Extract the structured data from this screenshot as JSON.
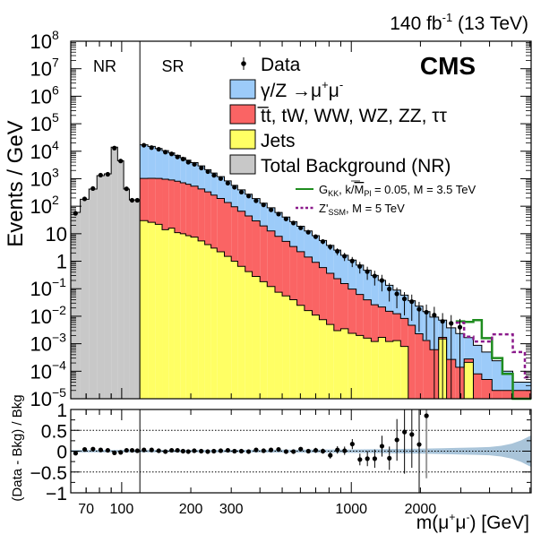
{
  "chart_data": {
    "type": "histogram-stacked-log",
    "lumi_label": "140 fb⁻¹ (13 TeV)",
    "lumi_parts": {
      "value": "140 fb",
      "sup": "-1",
      "tail": " (13 TeV)"
    },
    "experiment_label": "CMS",
    "region_labels": {
      "control": "NR",
      "signal": "SR"
    },
    "ylabel": "Events / GeV",
    "ratio_ylabel": "(Data - Bkg) / Bkg",
    "xlabel": "m(μ⁺μ⁻) [GeV]",
    "xlabel_parts": {
      "pre": "m(μ",
      "sup1": "+",
      "mid": "μ",
      "sup2": "-",
      "post": ") [GeV]"
    },
    "xlim": [
      60,
      6070
    ],
    "ylim": [
      1e-05,
      100000000.0
    ],
    "ratio_ylim": [
      -1,
      1
    ],
    "region_boundary": 120,
    "x_ticklabels": [
      {
        "v": 70,
        "label": "70"
      },
      {
        "v": 100,
        "label": "100"
      },
      {
        "v": 200,
        "label": "200"
      },
      {
        "v": 300,
        "label": "300"
      },
      {
        "v": 1000,
        "label": "1000"
      },
      {
        "v": 2000,
        "label": "2000"
      }
    ],
    "y_ticklabels": [
      {
        "exp": 8,
        "label": "10",
        "sup": "8"
      },
      {
        "exp": 7,
        "label": "10",
        "sup": "7"
      },
      {
        "exp": 6,
        "label": "10",
        "sup": "6"
      },
      {
        "exp": 5,
        "label": "10",
        "sup": "5"
      },
      {
        "exp": 4,
        "label": "10",
        "sup": "4"
      },
      {
        "exp": 3,
        "label": "10",
        "sup": "3"
      },
      {
        "exp": 2,
        "label": "10",
        "sup": "2"
      },
      {
        "exp": 1,
        "label": "10",
        "sup": ""
      },
      {
        "exp": 0,
        "label": "1",
        "sup": ""
      },
      {
        "exp": -1,
        "label": "10",
        "sup": "−1"
      },
      {
        "exp": -2,
        "label": "10",
        "sup": "−2"
      },
      {
        "exp": -3,
        "label": "10",
        "sup": "−3"
      },
      {
        "exp": -4,
        "label": "10",
        "sup": "−4"
      },
      {
        "exp": -5,
        "label": "10",
        "sup": "−5"
      }
    ],
    "ratio_ticklabels": [
      {
        "v": 1,
        "label": "1"
      },
      {
        "v": 0.5,
        "label": "0.5"
      },
      {
        "v": 0,
        "label": "0"
      },
      {
        "v": -0.5,
        "label": "−0.5"
      },
      {
        "v": -1,
        "label": "−1"
      }
    ],
    "legend": {
      "placement": "top-right",
      "entries": [
        {
          "key": "data",
          "label": "Data",
          "style": "marker"
        },
        {
          "key": "dy",
          "label": "γ/Z →μ⁺μ⁻",
          "style": "fill",
          "color": "#9ccbf9"
        },
        {
          "key": "top",
          "label": "t̅t, tW, WW, WZ, ZZ, ττ",
          "style": "fill",
          "color": "#fa6464"
        },
        {
          "key": "jets",
          "label": "Jets",
          "style": "fill",
          "color": "#ffff64"
        },
        {
          "key": "nr",
          "label": "Total Background (NR)",
          "style": "fill",
          "color": "#c8c8c8"
        },
        {
          "key": "gkk",
          "label": "G_KK, k/M̅_Pl = 0.05, M = 3.5 TeV",
          "style": "line",
          "color": "#1e8c1e",
          "parts": {
            "a": "G",
            "a_sub": "KK",
            "b": ", k/",
            "c": "M",
            "c_sub": "Pl",
            "d": " = 0.05, M = 3.5 TeV"
          }
        },
        {
          "key": "zssm",
          "label": "Z'_SSM, M = 5 TeV",
          "style": "dashed-line",
          "color": "#8b1a8b",
          "parts": {
            "a": "Z'",
            "a_sub": "SSM",
            "b": ", M = 5 TeV"
          }
        }
      ]
    },
    "colors": {
      "dy": "#9ccbf9",
      "top": "#fa6464",
      "jets": "#ffff64",
      "nr": "#c8c8c8",
      "gkk": "#1e8c1e",
      "zssm": "#8b1a8b",
      "uncertainty_band": "#a9c4d9",
      "data": "#000000"
    },
    "nr_bins": {
      "edges": [
        60,
        66,
        72,
        78,
        84,
        90,
        96,
        102,
        108,
        114,
        120
      ],
      "total_bkg": [
        60,
        180,
        420,
        1300,
        1500,
        14000,
        4500,
        420,
        170,
        170
      ],
      "data": [
        55,
        185,
        440,
        1350,
        1450,
        13000,
        4400,
        430,
        165,
        165
      ]
    },
    "sr_bins": {
      "edges": [
        120,
        130,
        140,
        150,
        160,
        170,
        180,
        190,
        200,
        215,
        230,
        245,
        260,
        280,
        300,
        320,
        345,
        370,
        400,
        430,
        465,
        500,
        540,
        580,
        625,
        675,
        725,
        780,
        840,
        900,
        970,
        1050,
        1130,
        1220,
        1310,
        1410,
        1520,
        1640,
        1770,
        1900,
        2050,
        2200,
        2400,
        2600,
        2850,
        3100,
        3400,
        3700,
        4100,
        4550,
        5050,
        6070
      ],
      "jets": [
        30,
        26,
        22,
        14,
        16,
        11,
        10,
        8.5,
        7.5,
        5.5,
        4,
        3,
        2.2,
        1.5,
        1.0,
        0.65,
        0.42,
        0.28,
        0.18,
        0.12,
        0.075,
        0.055,
        0.04,
        0.025,
        0.016,
        0.011,
        0.0075,
        0.005,
        0.003,
        0.0035,
        0.0024,
        0.002,
        0.0016,
        0.0012,
        0.0017,
        0.0012,
        0.0013,
        0.0008,
        1e-05,
        1e-05,
        1e-05,
        1e-05,
        0.0015,
        1e-05,
        1e-05,
        0.00021,
        1e-05,
        1e-05,
        1e-05,
        1e-05,
        1e-05
      ],
      "top": [
        1000,
        1010,
        1000,
        950,
        880,
        800,
        700,
        620,
        530,
        420,
        330,
        250,
        190,
        135,
        95,
        65,
        44,
        29,
        19,
        12.5,
        8,
        5.2,
        3.4,
        2.2,
        1.4,
        0.9,
        0.58,
        0.36,
        0.23,
        0.15,
        0.095,
        0.06,
        0.038,
        0.025,
        0.02,
        0.014,
        0.011,
        0.0075,
        0.0047,
        0.0023,
        0.0013,
        0.0006,
        0.0002,
        0.00026,
        0.00013,
        7e-05,
        7e-05,
        4e-05,
        1e-05,
        1e-05,
        1e-05
      ],
      "dy": [
        16000,
        14000,
        11500,
        9500,
        7800,
        6300,
        5100,
        4100,
        3300,
        2500,
        1800,
        1350,
        1000,
        700,
        480,
        330,
        230,
        160,
        110,
        75,
        51,
        35,
        24,
        16.5,
        11.2,
        7.6,
        5.1,
        3.4,
        2.3,
        1.5,
        1.0,
        0.66,
        0.43,
        0.28,
        0.18,
        0.118,
        0.077,
        0.05,
        0.032,
        0.021,
        0.0135,
        0.0087,
        0.0055,
        0.0035,
        0.0022,
        0.0014,
        0.0008,
        0.00045,
        0.00022,
        8e-05,
        2e-05
      ],
      "data": [
        16500,
        13500,
        11800,
        9300,
        8000,
        6200,
        5200,
        4000,
        3350,
        2450,
        1820,
        1330,
        1010,
        690,
        490,
        325,
        235,
        158,
        112,
        74,
        52,
        34.5,
        24.5,
        16.3,
        11.4,
        7.8,
        5.2,
        3.35,
        2.3,
        1.52,
        1.02,
        0.65,
        0.42,
        0.29,
        0.2,
        0.098,
        0.065,
        0.043,
        0.034,
        0.018,
        0.014,
        0.011,
        0.0065,
        0.0055,
        0.004,
        null,
        null,
        null,
        null,
        null,
        null
      ],
      "data_err_rel": [
        0.01,
        0.01,
        0.01,
        0.01,
        0.01,
        0.01,
        0.01,
        0.01,
        0.01,
        0.01,
        0.01,
        0.02,
        0.02,
        0.02,
        0.02,
        0.03,
        0.03,
        0.04,
        0.05,
        0.06,
        0.07,
        0.08,
        0.1,
        0.12,
        0.14,
        0.17,
        0.2,
        0.24,
        0.28,
        0.33,
        0.4,
        0.45,
        0.5,
        0.55,
        0.6,
        0.65,
        0.7,
        0.75,
        0.8,
        0.85,
        0.9,
        1.0,
        1.0,
        1.0,
        1.0,
        null,
        null,
        null,
        null,
        null,
        null
      ]
    },
    "signals": {
      "gkk": {
        "edges": [
          2850,
          3100,
          3400,
          3700,
          4100,
          4550,
          5050,
          6070
        ],
        "values": [
          0.0065,
          0.0062,
          0.0072,
          0.0016,
          0.0003,
          8e-05,
          1e-05
        ]
      },
      "zssm": {
        "edges": [
          2850,
          3100,
          3400,
          3700,
          4100,
          4550,
          5050,
          5700,
          6070
        ],
        "values": [
          0.0058,
          0.0018,
          0.0012,
          0.0012,
          0.0022,
          0.0022,
          0.0005,
          6e-05
        ]
      }
    },
    "ratio": {
      "x": [
        63,
        69,
        75,
        81,
        87,
        93,
        99,
        105,
        111,
        117,
        125,
        135,
        145,
        155,
        165,
        175,
        185,
        195,
        207,
        222,
        237,
        252,
        270,
        290,
        310,
        332,
        357,
        385,
        415,
        447,
        482,
        520,
        560,
        602,
        650,
        700,
        752,
        810,
        870,
        935,
        1010,
        1090,
        1175,
        1265,
        1360,
        1465,
        1580,
        1705,
        1835,
        1975,
        2125,
        2300,
        2500,
        2725,
        2975,
        3250
      ],
      "values": [
        -0.05,
        0.04,
        0.05,
        0.03,
        0.02,
        -0.04,
        -0.03,
        0.02,
        0.02,
        0.01,
        0.03,
        0.03,
        0.01,
        -0.01,
        0.02,
        0.02,
        0.0,
        -0.01,
        0.01,
        0.0,
        -0.01,
        0.0,
        0.01,
        0.02,
        0.0,
        0.0,
        -0.01,
        0.03,
        0.01,
        0.03,
        0.04,
        -0.01,
        -0.01,
        0.05,
        0.0,
        0.02,
        0.0,
        -0.1,
        0.03,
        0.01,
        0.17,
        -0.2,
        -0.18,
        -0.18,
        0.12,
        -0.17,
        0.27,
        0.46,
        0.4,
        0.16,
        0.85,
        null,
        null,
        null,
        null,
        null
      ],
      "errors": [
        0.01,
        0.01,
        0.01,
        0.01,
        0.01,
        0.01,
        0.01,
        0.01,
        0.01,
        0.01,
        0.01,
        0.01,
        0.01,
        0.01,
        0.01,
        0.01,
        0.01,
        0.01,
        0.01,
        0.01,
        0.01,
        0.01,
        0.02,
        0.02,
        0.02,
        0.02,
        0.02,
        0.03,
        0.03,
        0.03,
        0.04,
        0.04,
        0.04,
        0.05,
        0.05,
        0.06,
        0.06,
        0.08,
        0.09,
        0.1,
        0.12,
        0.14,
        0.18,
        0.22,
        0.25,
        0.28,
        0.5,
        1.0,
        0.8,
        1.2,
        1.5,
        null,
        null,
        null,
        null,
        null
      ],
      "uncertainty_band": {
        "x": [
          60,
          200,
          500,
          1000,
          1500,
          2000,
          2500,
          3000,
          3500,
          4000,
          4500,
          5000,
          5500,
          6070
        ],
        "halfwidth": [
          0.03,
          0.03,
          0.035,
          0.04,
          0.05,
          0.06,
          0.07,
          0.08,
          0.09,
          0.1,
          0.13,
          0.18,
          0.26,
          0.38
        ]
      },
      "dotted_lines": [
        0.5,
        0,
        -0.5
      ]
    }
  }
}
